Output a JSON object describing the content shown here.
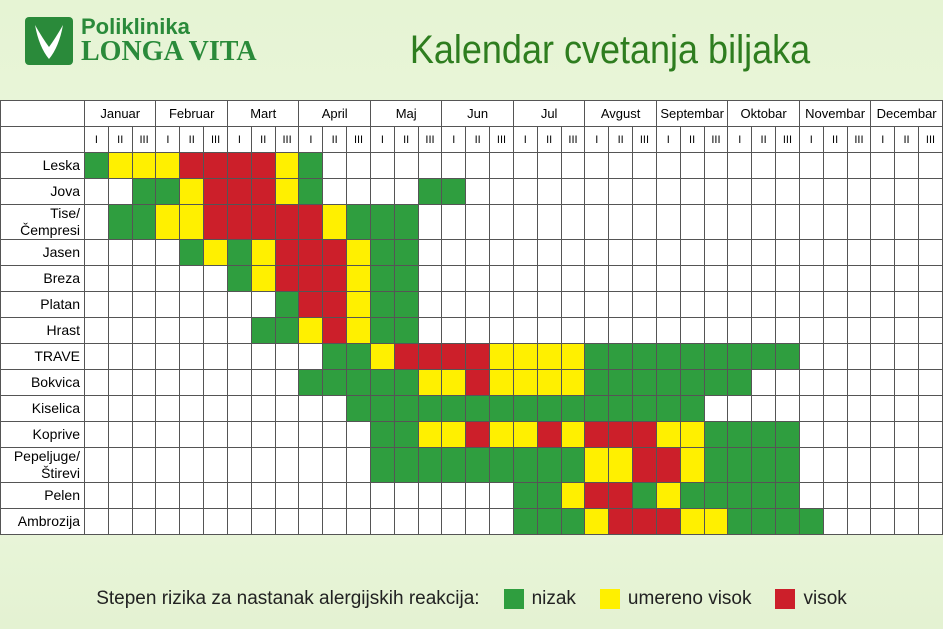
{
  "header": {
    "logo_top": "Poliklinika",
    "logo_bottom": "LONGA VITA",
    "title": "Kalendar cvetanja biljaka"
  },
  "months": [
    "Januar",
    "Februar",
    "Mart",
    "April",
    "Maj",
    "Jun",
    "Jul",
    "Avgust",
    "Septembar",
    "Oktobar",
    "Novembar",
    "Decembar"
  ],
  "decades": [
    "I",
    "II",
    "III"
  ],
  "rows": [
    {
      "name": "Leska",
      "cells": [
        "#2f9e3f",
        "#fff000",
        "#fff000",
        "#fff000",
        "#cc1f2a",
        "#cc1f2a",
        "#cc1f2a",
        "#cc1f2a",
        "#fff000",
        "#2f9e3f",
        null,
        null,
        null,
        null,
        null,
        null,
        null,
        null,
        null,
        null,
        null,
        null,
        null,
        null,
        null,
        null,
        null,
        null,
        null,
        null,
        null,
        null,
        null,
        null,
        null,
        null
      ]
    },
    {
      "name": "Jova",
      "cells": [
        null,
        null,
        "#2f9e3f",
        "#2f9e3f",
        "#fff000",
        "#cc1f2a",
        "#cc1f2a",
        "#cc1f2a",
        "#fff000",
        "#2f9e3f",
        null,
        null,
        null,
        null,
        "#2f9e3f",
        "#2f9e3f",
        null,
        null,
        null,
        null,
        null,
        null,
        null,
        null,
        null,
        null,
        null,
        null,
        null,
        null,
        null,
        null,
        null,
        null,
        null,
        null
      ]
    },
    {
      "name": "Tise/ Čempresi",
      "cells": [
        null,
        "#2f9e3f",
        "#2f9e3f",
        "#fff000",
        "#fff000",
        "#cc1f2a",
        "#cc1f2a",
        "#cc1f2a",
        "#cc1f2a",
        "#cc1f2a",
        "#fff000",
        "#2f9e3f",
        "#2f9e3f",
        "#2f9e3f",
        null,
        null,
        null,
        null,
        null,
        null,
        null,
        null,
        null,
        null,
        null,
        null,
        null,
        null,
        null,
        null,
        null,
        null,
        null,
        null,
        null,
        null
      ]
    },
    {
      "name": "Jasen",
      "cells": [
        null,
        null,
        null,
        null,
        "#2f9e3f",
        "#fff000",
        "#2f9e3f",
        "#fff000",
        "#cc1f2a",
        "#cc1f2a",
        "#cc1f2a",
        "#fff000",
        "#2f9e3f",
        "#2f9e3f",
        null,
        null,
        null,
        null,
        null,
        null,
        null,
        null,
        null,
        null,
        null,
        null,
        null,
        null,
        null,
        null,
        null,
        null,
        null,
        null,
        null,
        null
      ]
    },
    {
      "name": "Breza",
      "cells": [
        null,
        null,
        null,
        null,
        null,
        null,
        "#2f9e3f",
        "#fff000",
        "#cc1f2a",
        "#cc1f2a",
        "#cc1f2a",
        "#fff000",
        "#2f9e3f",
        "#2f9e3f",
        null,
        null,
        null,
        null,
        null,
        null,
        null,
        null,
        null,
        null,
        null,
        null,
        null,
        null,
        null,
        null,
        null,
        null,
        null,
        null,
        null,
        null
      ]
    },
    {
      "name": "Platan",
      "cells": [
        null,
        null,
        null,
        null,
        null,
        null,
        null,
        null,
        "#2f9e3f",
        "#cc1f2a",
        "#cc1f2a",
        "#fff000",
        "#2f9e3f",
        "#2f9e3f",
        null,
        null,
        null,
        null,
        null,
        null,
        null,
        null,
        null,
        null,
        null,
        null,
        null,
        null,
        null,
        null,
        null,
        null,
        null,
        null,
        null,
        null
      ]
    },
    {
      "name": "Hrast",
      "cells": [
        null,
        null,
        null,
        null,
        null,
        null,
        null,
        "#2f9e3f",
        "#2f9e3f",
        "#fff000",
        "#cc1f2a",
        "#fff000",
        "#2f9e3f",
        "#2f9e3f",
        null,
        null,
        null,
        null,
        null,
        null,
        null,
        null,
        null,
        null,
        null,
        null,
        null,
        null,
        null,
        null,
        null,
        null,
        null,
        null,
        null,
        null
      ]
    },
    {
      "name": "TRAVE",
      "cells": [
        null,
        null,
        null,
        null,
        null,
        null,
        null,
        null,
        null,
        null,
        "#2f9e3f",
        "#2f9e3f",
        "#fff000",
        "#cc1f2a",
        "#cc1f2a",
        "#cc1f2a",
        "#cc1f2a",
        "#fff000",
        "#fff000",
        "#fff000",
        "#fff000",
        "#2f9e3f",
        "#2f9e3f",
        "#2f9e3f",
        "#2f9e3f",
        "#2f9e3f",
        "#2f9e3f",
        "#2f9e3f",
        "#2f9e3f",
        "#2f9e3f",
        null,
        null,
        null,
        null,
        null,
        null
      ]
    },
    {
      "name": "Bokvica",
      "cells": [
        null,
        null,
        null,
        null,
        null,
        null,
        null,
        null,
        null,
        "#2f9e3f",
        "#2f9e3f",
        "#2f9e3f",
        "#2f9e3f",
        "#2f9e3f",
        "#fff000",
        "#fff000",
        "#cc1f2a",
        "#fff000",
        "#fff000",
        "#fff000",
        "#fff000",
        "#2f9e3f",
        "#2f9e3f",
        "#2f9e3f",
        "#2f9e3f",
        "#2f9e3f",
        "#2f9e3f",
        "#2f9e3f",
        null,
        null,
        null,
        null,
        null,
        null,
        null,
        null
      ]
    },
    {
      "name": "Kiselica",
      "cells": [
        null,
        null,
        null,
        null,
        null,
        null,
        null,
        null,
        null,
        null,
        null,
        "#2f9e3f",
        "#2f9e3f",
        "#2f9e3f",
        "#2f9e3f",
        "#2f9e3f",
        "#2f9e3f",
        "#2f9e3f",
        "#2f9e3f",
        "#2f9e3f",
        "#2f9e3f",
        "#2f9e3f",
        "#2f9e3f",
        "#2f9e3f",
        "#2f9e3f",
        "#2f9e3f",
        null,
        null,
        null,
        null,
        null,
        null,
        null,
        null,
        null,
        null
      ]
    },
    {
      "name": "Koprive",
      "cells": [
        null,
        null,
        null,
        null,
        null,
        null,
        null,
        null,
        null,
        null,
        null,
        null,
        "#2f9e3f",
        "#2f9e3f",
        "#fff000",
        "#fff000",
        "#cc1f2a",
        "#fff000",
        "#fff000",
        "#cc1f2a",
        "#fff000",
        "#cc1f2a",
        "#cc1f2a",
        "#cc1f2a",
        "#fff000",
        "#fff000",
        "#2f9e3f",
        "#2f9e3f",
        "#2f9e3f",
        "#2f9e3f",
        null,
        null,
        null,
        null,
        null,
        null
      ]
    },
    {
      "name": "Pepeljuge/ Štirevi",
      "cells": [
        null,
        null,
        null,
        null,
        null,
        null,
        null,
        null,
        null,
        null,
        null,
        null,
        "#2f9e3f",
        "#2f9e3f",
        "#2f9e3f",
        "#2f9e3f",
        "#2f9e3f",
        "#2f9e3f",
        "#2f9e3f",
        "#2f9e3f",
        "#2f9e3f",
        "#fff000",
        "#fff000",
        "#cc1f2a",
        "#cc1f2a",
        "#fff000",
        "#2f9e3f",
        "#2f9e3f",
        "#2f9e3f",
        "#2f9e3f",
        null,
        null,
        null,
        null,
        null,
        null
      ]
    },
    {
      "name": "Pelen",
      "cells": [
        null,
        null,
        null,
        null,
        null,
        null,
        null,
        null,
        null,
        null,
        null,
        null,
        null,
        null,
        null,
        null,
        null,
        null,
        "#2f9e3f",
        "#2f9e3f",
        "#fff000",
        "#cc1f2a",
        "#cc1f2a",
        "#2f9e3f",
        "#fff000",
        "#2f9e3f",
        "#2f9e3f",
        "#2f9e3f",
        "#2f9e3f",
        "#2f9e3f",
        null,
        null,
        null,
        null,
        null,
        null
      ]
    },
    {
      "name": "Ambrozija",
      "cells": [
        null,
        null,
        null,
        null,
        null,
        null,
        null,
        null,
        null,
        null,
        null,
        null,
        null,
        null,
        null,
        null,
        null,
        null,
        "#2f9e3f",
        "#2f9e3f",
        "#2f9e3f",
        "#fff000",
        "#cc1f2a",
        "#cc1f2a",
        "#cc1f2a",
        "#fff000",
        "#fff000",
        "#2f9e3f",
        "#2f9e3f",
        "#2f9e3f",
        "#2f9e3f",
        null,
        null,
        null,
        null,
        null
      ]
    }
  ],
  "legend": {
    "title": "Stepen rizika za nastanak alergijskih reakcija:",
    "items": [
      {
        "label": "nizak",
        "color": "#2f9e3f"
      },
      {
        "label": "umereno visok",
        "color": "#fff000"
      },
      {
        "label": "visok",
        "color": "#cc1f2a"
      }
    ]
  }
}
